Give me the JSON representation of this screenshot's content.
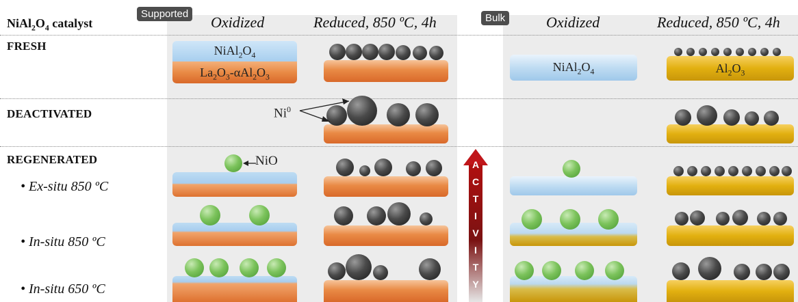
{
  "header": {
    "catalyst_label": "NiAl",
    "catalyst_sub1": "2",
    "catalyst_mid": "O",
    "catalyst_sub2": "4",
    "catalyst_suffix": " catalyst",
    "supported_tag": "Supported",
    "bulk_tag": "Bulk",
    "oxidized": "Oxidized",
    "reduced": "Reduced, 850 ºC, 4h"
  },
  "rows": {
    "fresh": "FRESH",
    "deactivated": "DEACTIVATED",
    "regenerated": "REGENERATED",
    "ex_situ_850": "• Ex-situ 850 ºC",
    "in_situ_850": "• In-situ 850 ºC",
    "in_situ_650": "• In-situ 650 ºC"
  },
  "labels": {
    "supported_top": "NiAl",
    "supported_top_sub1": "2",
    "supported_top_mid": "O",
    "supported_top_sub2": "4",
    "supported_bottom_a": "La",
    "supported_bottom_sub1": "2",
    "supported_bottom_b": "O",
    "supported_bottom_sub2": "3",
    "supported_bottom_c": "-αAl",
    "supported_bottom_sub3": "2",
    "supported_bottom_d": "O",
    "supported_bottom_sub4": "3",
    "bulk_fresh_a": "NiAl",
    "bulk_fresh_sub1": "2",
    "bulk_fresh_b": "O",
    "bulk_fresh_sub2": "4",
    "bulk_reduced_a": "Al",
    "bulk_reduced_sub1": "2",
    "bulk_reduced_b": "O",
    "bulk_reduced_sub2": "3",
    "ni0": "Ni",
    "ni0_sup": "0",
    "nio": "NiO"
  },
  "activity": {
    "letters": [
      "A",
      "C",
      "T",
      "I",
      "V",
      "I",
      "T",
      "Y"
    ],
    "arrow_color": "#c0161a"
  },
  "colors": {
    "support_orange": "#e98a45",
    "spinel_blue": "#bfdcf2",
    "alumina_gold": "#e2b010",
    "ni_metal": "#333333",
    "nio_green": "#7cc35c",
    "tag_gray": "#4d4d4d"
  }
}
